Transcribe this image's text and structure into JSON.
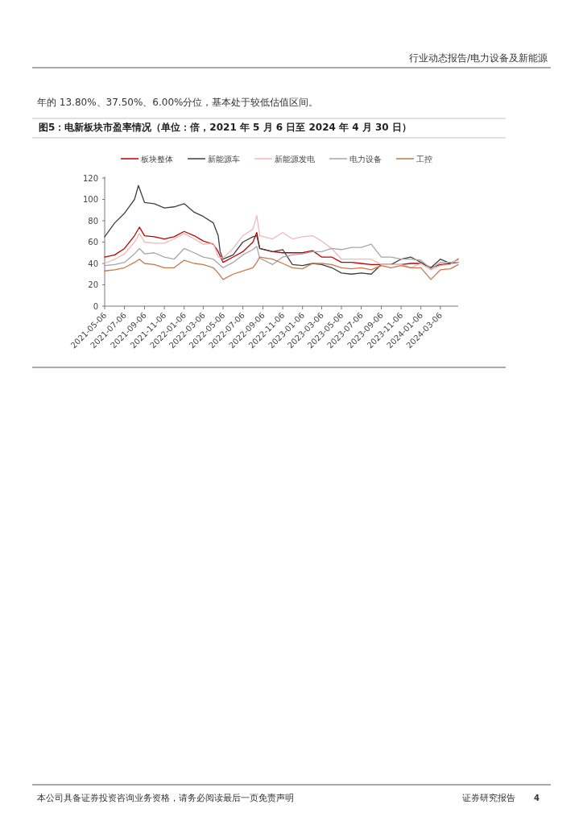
{
  "chart_data": {
    "type": "line",
    "title": "图5：电新板块市盈率情况（单位：倍，2021 年 5 月 6 日至 2024 年 4 月 30 日）",
    "annotations": [
      "行业动态报告/电力设备及新能源",
      "年的 13.80%、37.50%、6.00%分位，基本处于较低估值区间。",
      "本公司具备证券投资咨询业务资格，请务必阅读最后一页免责声明",
      "证券研究报告",
      "4"
    ],
    "x": [
      "2021-05-06",
      "2021-06-06",
      "2021-07-06",
      "2021-08-06",
      "2021-08-21",
      "2021-09-06",
      "2021-10-06",
      "2021-11-06",
      "2021-12-06",
      "2022-01-06",
      "2022-02-06",
      "2022-03-06",
      "2022-04-06",
      "2022-04-21",
      "2022-05-06",
      "2022-06-06",
      "2022-07-06",
      "2022-08-06",
      "2022-08-18",
      "2022-08-27",
      "2022-10-06",
      "2022-11-06",
      "2022-12-06",
      "2023-01-06",
      "2023-02-06",
      "2023-03-06",
      "2023-04-06",
      "2023-05-06",
      "2023-06-06",
      "2023-07-06",
      "2023-08-06",
      "2023-09-06",
      "2023-10-06",
      "2023-11-06",
      "2023-12-06",
      "2024-01-06",
      "2024-02-06",
      "2024-03-06",
      "2024-04-06",
      "2024-04-30"
    ],
    "series": [
      {
        "name": "板块整体",
        "color": "#c00000",
        "values": [
          46,
          48,
          54,
          66,
          74,
          66,
          65,
          63,
          65,
          70,
          66,
          61,
          58,
          51,
          41,
          46,
          51,
          60,
          69,
          54,
          51,
          50,
          50,
          50,
          52,
          46,
          46,
          41,
          41,
          40,
          39,
          39,
          39,
          39,
          40,
          40,
          36,
          39,
          40,
          44
        ]
      },
      {
        "name": "新能源车",
        "color": "#404040",
        "x": [
          "2021-05-06",
          "2021-06-06",
          "2021-07-06",
          "2021-08-06",
          "2021-08-18",
          "2021-09-06",
          "2021-10-06",
          "2021-11-06",
          "2021-12-06",
          "2022-01-06",
          "2022-02-06",
          "2022-03-06",
          "2022-04-06",
          "2022-04-21",
          "2022-04-27",
          "2022-05-06",
          "2022-06-06",
          "2022-07-06",
          "2022-08-06",
          "2022-08-18",
          "2022-08-27",
          "2022-10-06",
          "2022-11-06",
          "2022-12-06",
          "2023-01-06",
          "2023-02-06",
          "2023-03-06",
          "2023-04-06",
          "2023-05-06",
          "2023-06-06",
          "2023-07-06",
          "2023-08-06",
          "2023-09-06",
          "2023-10-06",
          "2023-11-06",
          "2023-12-06",
          "2024-01-06",
          "2024-02-06",
          "2024-03-06",
          "2024-04-06",
          "2024-04-30"
        ],
        "values": [
          65,
          78,
          87,
          100,
          113,
          97,
          96,
          92,
          93,
          96,
          88,
          84,
          78,
          66,
          51,
          44,
          48,
          60,
          65,
          66,
          54,
          51,
          53,
          39,
          38,
          40,
          39,
          36,
          31,
          30,
          31,
          30,
          39,
          39,
          44,
          46,
          41,
          36,
          44,
          40,
          41
        ]
      },
      {
        "name": "新能源发电",
        "color": "#f0b8b8",
        "values": [
          40,
          44,
          49,
          60,
          68,
          60,
          59,
          59,
          63,
          68,
          63,
          58,
          59,
          46,
          45,
          54,
          66,
          72,
          85,
          66,
          63,
          69,
          63,
          65,
          66,
          61,
          54,
          44,
          44,
          44,
          44,
          39,
          39,
          39,
          36,
          40,
          34,
          38,
          39,
          45
        ]
      },
      {
        "name": "电力设备",
        "color": "#a6a6a6",
        "values": [
          38,
          39,
          41,
          49,
          54,
          49,
          50,
          46,
          44,
          54,
          50,
          46,
          44,
          40,
          36,
          41,
          48,
          53,
          56,
          45,
          39,
          46,
          48,
          49,
          51,
          51,
          54,
          53,
          55,
          55,
          58,
          46,
          46,
          44,
          44,
          43,
          35,
          41,
          41,
          41
        ]
      },
      {
        "name": "工控",
        "color": "#c8784a",
        "values": [
          33,
          34,
          36,
          41,
          44,
          40,
          39,
          36,
          36,
          43,
          40,
          39,
          36,
          31,
          25,
          30,
          33,
          36,
          41,
          46,
          44,
          40,
          36,
          35,
          40,
          40,
          39,
          36,
          35,
          36,
          34,
          38,
          36,
          38,
          36,
          36,
          25,
          34,
          35,
          39
        ]
      }
    ],
    "xlim": [
      "2021-05-06",
      "2024-04-30"
    ],
    "xticks": [
      "2021-05-06",
      "2021-07-06",
      "2021-09-06",
      "2021-11-06",
      "2022-01-06",
      "2022-03-06",
      "2022-05-06",
      "2022-07-06",
      "2022-09-06",
      "2022-11-06",
      "2023-01-06",
      "2023-03-06",
      "2023-05-06",
      "2023-07-06",
      "2023-09-06",
      "2023-11-06",
      "2024-01-06",
      "2024-03-06"
    ],
    "ylim": [
      0,
      120
    ],
    "yticks": [
      0,
      20,
      40,
      60,
      80,
      100,
      120
    ],
    "legend": "top",
    "line_style": "solid"
  }
}
